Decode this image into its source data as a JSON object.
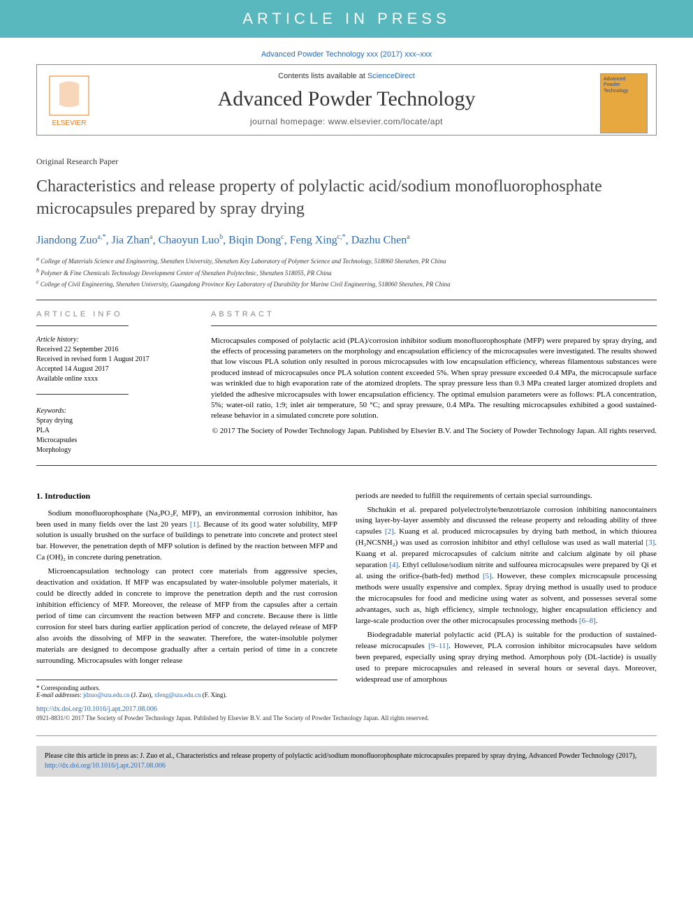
{
  "banner": "ARTICLE IN PRESS",
  "citation_line": "Advanced Powder Technology xxx (2017) xxx–xxx",
  "header": {
    "contents_prefix": "Contents lists available at ",
    "contents_link": "ScienceDirect",
    "journal_name": "Advanced Powder Technology",
    "homepage_prefix": "journal homepage: ",
    "homepage_url": "www.elsevier.com/locate/apt",
    "publisher": "ELSEVIER",
    "cover_line1": "Advanced",
    "cover_line2": "Powder",
    "cover_line3": "Technology"
  },
  "article_type": "Original Research Paper",
  "title": "Characteristics and release property of polylactic acid/sodium monofluorophosphate microcapsules prepared by spray drying",
  "authors": [
    {
      "name": "Jiandong Zuo",
      "sup": "a,*"
    },
    {
      "name": "Jia Zhan",
      "sup": "a"
    },
    {
      "name": "Chaoyun Luo",
      "sup": "b"
    },
    {
      "name": "Biqin Dong",
      "sup": "c"
    },
    {
      "name": "Feng Xing",
      "sup": "c,*"
    },
    {
      "name": "Dazhu Chen",
      "sup": "a"
    }
  ],
  "affiliations": [
    {
      "sup": "a",
      "text": "College of Materials Science and Engineering, Shenzhen University, Shenzhen Key Laboratory of Polymer Science and Technology, 518060 Shenzhen, PR China"
    },
    {
      "sup": "b",
      "text": "Polymer & Fine Chemicals Technology Development Center of Shenzhen Polytechnic, Shenzhen 518055, PR China"
    },
    {
      "sup": "c",
      "text": "College of Civil Engineering, Shenzhen University, Guangdong Province Key Laboratory of Durability for Marine Civil Engineering, 518060 Shenzhen, PR China"
    }
  ],
  "info": {
    "heading": "ARTICLE INFO",
    "history_label": "Article history:",
    "history": [
      "Received 22 September 2016",
      "Received in revised form 1 August 2017",
      "Accepted 14 August 2017",
      "Available online xxxx"
    ],
    "keywords_label": "Keywords:",
    "keywords": [
      "Spray drying",
      "PLA",
      "Microcapsules",
      "Morphology"
    ]
  },
  "abstract": {
    "heading": "ABSTRACT",
    "text": "Microcapsules composed of polylactic acid (PLA)/corrosion inhibitor sodium monofluorophosphate (MFP) were prepared by spray drying, and the effects of processing parameters on the morphology and encapsulation efficiency of the microcapsules were investigated. The results showed that low viscous PLA solution only resulted in porous microcapsules with low encapsulation efficiency, whereas filamentous substances were produced instead of microcapsules once PLA solution content exceeded 5%. When spray pressure exceeded 0.4 MPa, the microcapsule surface was wrinkled due to high evaporation rate of the atomized droplets. The spray pressure less than 0.3 MPa created larger atomized droplets and yielded the adhesive microcapsules with lower encapsulation efficiency. The optimal emulsion parameters were as follows: PLA concentration, 5%; water-oil ratio, 1:9; inlet air temperature, 50 °C; and spray pressure, 0.4 MPa. The resulting microcapsules exhibited a good sustained-release behavior in a simulated concrete pore solution.",
    "copyright": "© 2017 The Society of Powder Technology Japan. Published by Elsevier B.V. and The Society of Powder Technology Japan. All rights reserved."
  },
  "body": {
    "left": {
      "heading": "1. Introduction",
      "p1": "Sodium monofluorophosphate (Na₂PO₃F, MFP), an environmental corrosion inhibitor, has been used in many fields over the last 20 years [1]. Because of its good water solubility, MFP solution is usually brushed on the surface of buildings to penetrate into concrete and protect steel bar. However, the penetration depth of MFP solution is defined by the reaction between MFP and Ca (OH)₂ in concrete during penetration.",
      "p2": "Microencapsulation technology can protect core materials from aggressive species, deactivation and oxidation. If MFP was encapsulated by water-insoluble polymer materials, it could be directly added in concrete to improve the penetration depth and the rust corrosion inhibition efficiency of MFP. Moreover, the release of MFP from the capsules after a certain period of time can circumvent the reaction between MFP and concrete. Because there is little corrosion for steel bars during earlier application period of concrete, the delayed release of MFP also avoids the dissolving of MFP in the seawater. Therefore, the water-insoluble polymer materials are designed to decompose gradually after a certain period of time in a concrete surrounding. Microcapsules with longer release"
    },
    "right": {
      "p1": "periods are needed to fulfill the requirements of certain special surroundings.",
      "p2": "Shchukin et al. prepared polyelectrolyte/benzotriazole corrosion inhibiting nanocontainers using layer-by-layer assembly and discussed the release property and reloading ability of three capsules [2]. Kuang et al. produced microcapsules by drying bath method, in which thiourea (H₂NCSNH₂) was used as corrosion inhibitor and ethyl cellulose was used as wall material [3]. Kuang et al. prepared microcapsules of calcium nitrite and calcium alginate by oil phase separation [4]. Ethyl cellulose/sodium nitrite and sulfourea microcapsules were prepared by Qi et al. using the orifice-(bath-fed) method [5]. However, these complex microcapsule processing methods were usually expensive and complex. Spray drying method is usually used to produce the microcapsules for food and medicine using water as solvent, and possesses several some advantages, such as, high efficiency, simple technology, higher encapsulation efficiency and large-scale production over the other microcapsules processing methods [6–8].",
      "p3": "Biodegradable material polylactic acid (PLA) is suitable for the production of sustained-release microcapsules [9–11]. However, PLA corrosion inhibitor microcapsules have seldom been prepared, especially using spray drying method. Amorphous poly (DL-lactide) is usually used to prepare microcapsules and released in several hours or several days. Moreover, widespread use of amorphous"
    }
  },
  "footnotes": {
    "corr": "* Corresponding authors.",
    "email_label": "E-mail addresses: ",
    "email1": "jdzuo@szu.edu.cn",
    "email1_name": " (J. Zuo), ",
    "email2": "xfeng@szu.edu.cn",
    "email2_name": " (F. Xing)."
  },
  "doi": {
    "url": "http://dx.doi.org/10.1016/j.apt.2017.08.006",
    "copyright": "0921-8831/© 2017 The Society of Powder Technology Japan. Published by Elsevier B.V. and The Society of Powder Technology Japan. All rights reserved."
  },
  "cite_box": {
    "text": "Please cite this article in press as: J. Zuo et al., Characteristics and release property of polylactic acid/sodium monofluorophosphate microcapsules prepared by spray drying, Advanced Powder Technology (2017), ",
    "link": "http://dx.doi.org/10.1016/j.apt.2017.08.006"
  },
  "colors": {
    "banner_bg": "#59b8bd",
    "link": "#2a6ab5",
    "cover_bg": "#e8a840",
    "cite_bg": "#d9d9d9"
  }
}
